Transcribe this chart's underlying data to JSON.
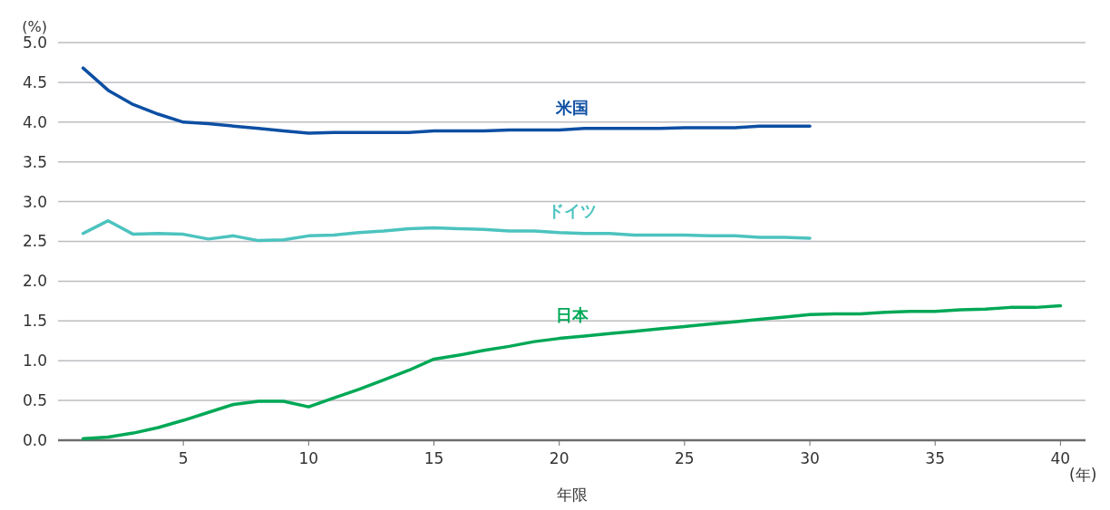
{
  "chart_data": {
    "type": "line",
    "ylabel": "(%)",
    "xlabel": "年限",
    "x2label": "(年)",
    "xlim": [
      0,
      41
    ],
    "xticks": [
      5,
      10,
      15,
      20,
      25,
      30,
      35,
      40
    ],
    "ylim": [
      0,
      5
    ],
    "yticks": [
      {
        "value": 0,
        "label": "0.0"
      },
      {
        "value": 0.5,
        "label": "0.5"
      },
      {
        "value": 1,
        "label": "1.0"
      },
      {
        "value": 1.5,
        "label": "1.5"
      },
      {
        "value": 2,
        "label": "2.0"
      },
      {
        "value": 2.5,
        "label": "2.5"
      },
      {
        "value": 3,
        "label": "3.0"
      },
      {
        "value": 3.5,
        "label": "3.5"
      },
      {
        "value": 4,
        "label": "4.0"
      },
      {
        "value": 4.5,
        "label": "4.5"
      },
      {
        "value": 5,
        "label": "5.0"
      }
    ],
    "grid": "y",
    "legend": false,
    "line_style": "solid",
    "series": [
      {
        "name": "米国",
        "color": "#0d4fa3",
        "x": [
          1,
          2,
          3,
          4,
          5,
          6,
          7,
          8,
          9,
          10,
          11,
          12,
          13,
          14,
          15,
          16,
          17,
          18,
          19,
          20,
          21,
          22,
          23,
          24,
          25,
          26,
          27,
          28,
          29,
          30
        ],
        "values": [
          4.68,
          4.4,
          4.22,
          4.1,
          4.0,
          3.98,
          3.95,
          3.92,
          3.89,
          3.86,
          3.87,
          3.87,
          3.87,
          3.87,
          3.89,
          3.89,
          3.89,
          3.9,
          3.9,
          3.9,
          3.92,
          3.92,
          3.92,
          3.92,
          3.93,
          3.93,
          3.93,
          3.95,
          3.95,
          3.95
        ]
      },
      {
        "name": "ドイツ",
        "color": "#4cc3bf",
        "x": [
          1,
          2,
          3,
          4,
          5,
          6,
          7,
          8,
          9,
          10,
          11,
          12,
          13,
          14,
          15,
          16,
          17,
          18,
          19,
          20,
          21,
          22,
          23,
          24,
          25,
          26,
          27,
          28,
          29,
          30
        ],
        "values": [
          2.6,
          2.76,
          2.59,
          2.6,
          2.59,
          2.53,
          2.57,
          2.51,
          2.52,
          2.57,
          2.58,
          2.61,
          2.63,
          2.66,
          2.67,
          2.66,
          2.65,
          2.63,
          2.63,
          2.61,
          2.6,
          2.6,
          2.58,
          2.58,
          2.58,
          2.57,
          2.57,
          2.55,
          2.55,
          2.54
        ]
      },
      {
        "name": "日本",
        "color": "#00a856",
        "x": [
          1,
          2,
          3,
          4,
          5,
          6,
          7,
          8,
          9,
          10,
          11,
          12,
          13,
          14,
          15,
          16,
          17,
          18,
          19,
          20,
          21,
          22,
          23,
          24,
          25,
          26,
          27,
          28,
          29,
          30,
          31,
          32,
          33,
          34,
          35,
          36,
          37,
          38,
          39,
          40
        ],
        "values": [
          0.02,
          0.04,
          0.09,
          0.16,
          0.25,
          0.35,
          0.45,
          0.49,
          0.49,
          0.42,
          0.53,
          0.64,
          0.76,
          0.88,
          1.02,
          1.07,
          1.13,
          1.18,
          1.24,
          1.28,
          1.31,
          1.34,
          1.37,
          1.4,
          1.43,
          1.46,
          1.49,
          1.52,
          1.55,
          1.58,
          1.59,
          1.59,
          1.61,
          1.62,
          1.62,
          1.64,
          1.65,
          1.67,
          1.67,
          1.69
        ]
      }
    ]
  }
}
